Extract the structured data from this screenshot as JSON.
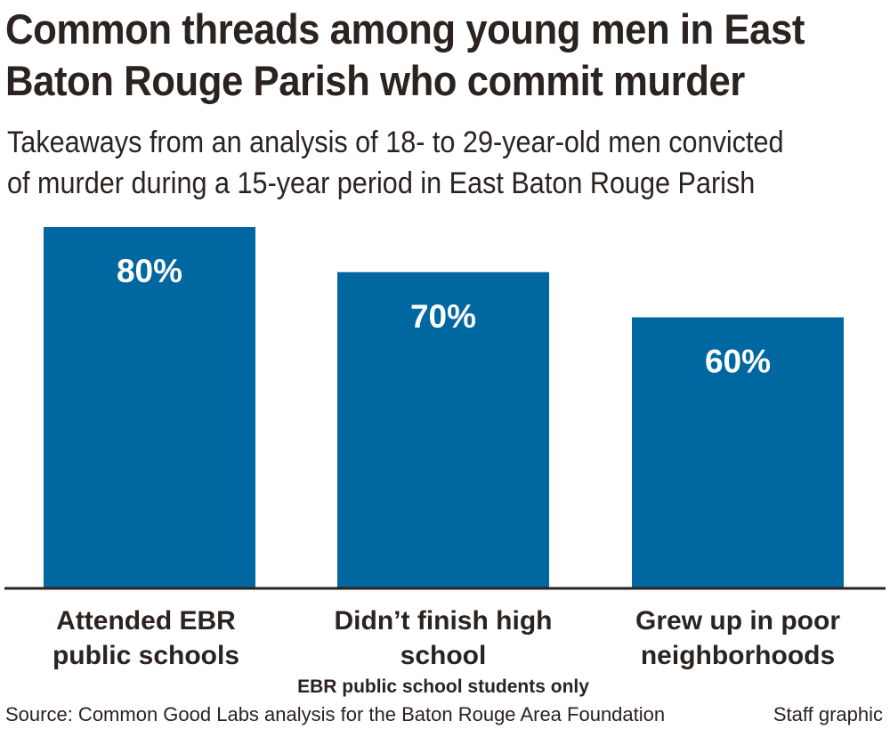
{
  "chart_data": {
    "type": "bar",
    "title": "Common threads among young men in East Baton Rouge Parish who commit murder",
    "title_lines": [
      "Common threads among young men in East",
      "Baton Rouge Parish who commit murder"
    ],
    "subtitle_lines": [
      "Takeaways from an analysis of 18- to 29-year-old men convicted",
      "of murder during a 15-year period in East Baton Rouge Parish"
    ],
    "categories": [
      {
        "label_lines": [
          "Attended EBR",
          "public schools"
        ],
        "note": ""
      },
      {
        "label_lines": [
          "Didn’t finish high school"
        ],
        "note": "EBR public school students only"
      },
      {
        "label_lines": [
          "Grew up in poor",
          "neighborhoods"
        ],
        "note": ""
      }
    ],
    "values": [
      80,
      70,
      60
    ],
    "value_labels": [
      "80%",
      "70%",
      "60%"
    ],
    "unit": "%",
    "ylim": [
      0,
      80
    ],
    "grid": false,
    "bar_color": "#0067a0",
    "xlabel": "",
    "ylabel": ""
  },
  "footer": {
    "source": "Source: Common Good Labs analysis for the Baton Rouge Area Foundation",
    "credit": "Staff graphic"
  }
}
